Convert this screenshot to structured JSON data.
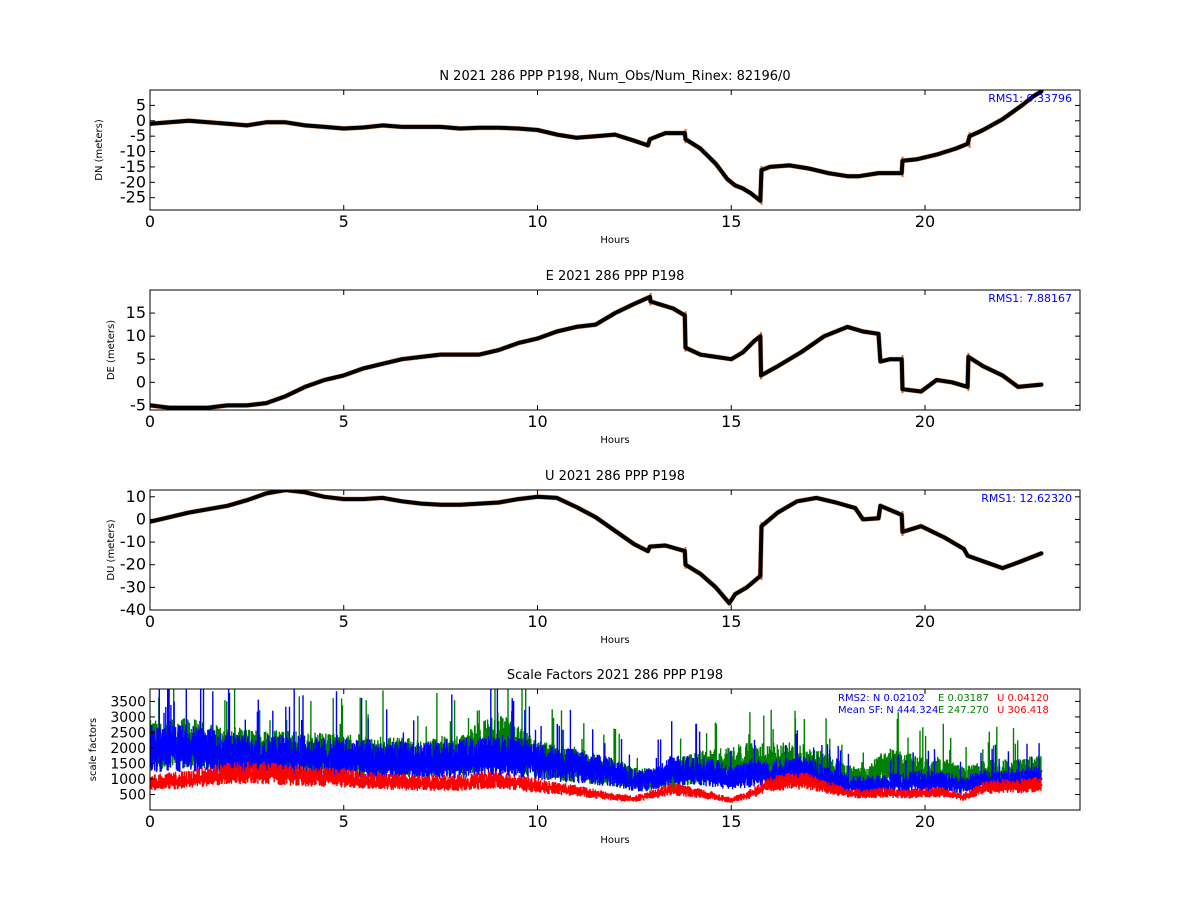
{
  "chart_data": [
    {
      "type": "scatter",
      "title": "N 2021 286 PPP  P198, Num_Obs/Num_Rinex: 82196/0",
      "xlabel": "Hours",
      "ylabel": "DN (meters)",
      "xlim": [
        0,
        24
      ],
      "ylim": [
        -29,
        10
      ],
      "xticks": [
        "0",
        "5",
        "10",
        "15",
        "20"
      ],
      "yticks": [
        "5",
        "0",
        "-5",
        "-10",
        "-15",
        "-20",
        "-25"
      ],
      "annotations": [
        "RMS1:  9.33796"
      ],
      "annotation_color": "#0000ff",
      "series": [
        {
          "color": "#000000",
          "marker_outline": "#d2691e",
          "x": [
            0,
            0.5,
            1,
            1.5,
            2,
            2.5,
            3,
            3.5,
            4,
            4.5,
            5,
            5.5,
            6,
            6.5,
            7,
            7.5,
            8,
            8.5,
            9,
            9.5,
            10,
            10.5,
            11,
            11.5,
            12,
            12.5,
            12.85,
            12.9,
            13.3,
            13.8,
            13.82,
            14.2,
            14.6,
            14.9,
            15.1,
            15.3,
            15.5,
            15.75,
            15.78,
            16,
            16.5,
            17,
            17.5,
            18,
            18.3,
            18.8,
            19.4,
            19.42,
            19.8,
            20.3,
            20.8,
            21.1,
            21.15,
            21.5,
            22,
            22.5,
            22.8,
            23
          ],
          "y": [
            -1,
            -0.5,
            0,
            -0.5,
            -1,
            -1.5,
            -0.5,
            -0.5,
            -1.5,
            -2,
            -2.5,
            -2.2,
            -1.5,
            -2,
            -2,
            -2,
            -2.5,
            -2.3,
            -2.3,
            -2.5,
            -3,
            -4.5,
            -5.5,
            -5,
            -4.5,
            -6.5,
            -8,
            -6,
            -4,
            -4,
            -6,
            -9,
            -14,
            -19,
            -21,
            -22,
            -23.5,
            -26,
            -16,
            -15,
            -14.5,
            -15.5,
            -17,
            -18,
            -18,
            -17,
            -17,
            -13,
            -12.5,
            -11,
            -9,
            -7.5,
            -5,
            -3,
            0.5,
            5,
            8,
            9.5
          ]
        }
      ]
    },
    {
      "type": "scatter",
      "title": "E 2021 286 PPP  P198",
      "xlabel": "Hours",
      "ylabel": "DE (meters)",
      "xlim": [
        0,
        24
      ],
      "ylim": [
        -6,
        20
      ],
      "xticks": [
        "0",
        "5",
        "10",
        "15",
        "20"
      ],
      "yticks": [
        "15",
        "10",
        "5",
        "0",
        "-5"
      ],
      "annotations": [
        "RMS1:  7.88167"
      ],
      "annotation_color": "#0000ff",
      "series": [
        {
          "color": "#000000",
          "marker_outline": "#d2691e",
          "x": [
            0,
            0.5,
            1,
            1.5,
            2,
            2.5,
            3,
            3.5,
            4,
            4.5,
            5,
            5.5,
            6,
            6.5,
            7,
            7.5,
            8,
            8.5,
            9,
            9.5,
            10,
            10.5,
            11,
            11.5,
            12,
            12.5,
            12.9,
            12.92,
            13.5,
            13.8,
            13.82,
            14.2,
            14.6,
            15,
            15.3,
            15.6,
            15.75,
            15.77,
            16.2,
            16.8,
            17.4,
            18,
            18.4,
            18.8,
            18.85,
            19.1,
            19.4,
            19.42,
            19.9,
            20.3,
            20.7,
            21.1,
            21.12,
            21.5,
            22,
            22.4,
            23
          ],
          "y": [
            -5,
            -5.5,
            -5.5,
            -5.5,
            -5,
            -5,
            -4.5,
            -3,
            -1,
            0.5,
            1.5,
            3,
            4,
            5,
            5.5,
            6,
            6,
            6,
            7,
            8.5,
            9.5,
            11,
            12,
            12.5,
            15,
            17,
            18.5,
            17.5,
            16,
            14.5,
            7.5,
            6,
            5.5,
            5,
            6.5,
            9,
            10,
            1.5,
            3.5,
            6.5,
            10,
            12,
            11,
            10.5,
            4.5,
            5,
            5,
            -1.5,
            -2,
            0.5,
            0,
            -1,
            5.5,
            3.5,
            1.5,
            -1,
            -0.5
          ]
        }
      ]
    },
    {
      "type": "scatter",
      "title": "U 2021 286 PPP  P198",
      "xlabel": "Hours",
      "ylabel": "DU (meters)",
      "xlim": [
        0,
        24
      ],
      "ylim": [
        -40,
        13
      ],
      "xticks": [
        "0",
        "5",
        "10",
        "15",
        "20"
      ],
      "yticks": [
        "10",
        "0",
        "-10",
        "-20",
        "-30",
        "-40"
      ],
      "annotations": [
        "RMS1: 12.62320"
      ],
      "annotation_color": "#0000ff",
      "series": [
        {
          "color": "#000000",
          "marker_outline": "#d2691e",
          "x": [
            0,
            0.5,
            1,
            1.5,
            2,
            2.5,
            3,
            3.5,
            4,
            4.5,
            5,
            5.5,
            6,
            6.5,
            7,
            7.5,
            8,
            8.5,
            9,
            9.5,
            10,
            10.5,
            11,
            11.5,
            12,
            12.5,
            12.85,
            12.9,
            13.3,
            13.8,
            13.82,
            14.2,
            14.6,
            14.95,
            15.1,
            15.4,
            15.75,
            15.78,
            16.2,
            16.7,
            17.2,
            17.7,
            18.2,
            18.4,
            18.8,
            18.85,
            19.4,
            19.42,
            19.9,
            20.5,
            21,
            21.1,
            21.5,
            22,
            22.4,
            23
          ],
          "y": [
            -1,
            1,
            3,
            4.5,
            6,
            8.5,
            11.5,
            13,
            12,
            10,
            9,
            9,
            9.5,
            8,
            7,
            6.5,
            6.5,
            7,
            7.5,
            9,
            10,
            9.5,
            5.5,
            1,
            -5,
            -11,
            -14,
            -12,
            -11.5,
            -14,
            -20,
            -24,
            -30,
            -37,
            -33,
            -30,
            -25,
            -3,
            3,
            8,
            9.5,
            7.5,
            5,
            0,
            0.5,
            6,
            2,
            -5.5,
            -3,
            -8,
            -13,
            -16,
            -18.5,
            -21.5,
            -19,
            -15
          ]
        }
      ]
    },
    {
      "type": "scatter",
      "title": "Scale Factors 2021 286 PPP  P198",
      "xlabel": "Hours",
      "ylabel": "scale factors",
      "xlim": [
        0,
        24
      ],
      "ylim": [
        0,
        3900
      ],
      "xticks": [
        "0",
        "5",
        "10",
        "15",
        "20"
      ],
      "yticks": [
        "3500",
        "3000",
        "2500",
        "2000",
        "1500",
        "1000",
        "500"
      ],
      "stats": [
        {
          "text": "RMS2: N  0.02102",
          "color": "#0000ff"
        },
        {
          "text": "E  0.03187",
          "color": "#008000"
        },
        {
          "text": "U  0.04120",
          "color": "#ff0000"
        },
        {
          "text": "Mean SF: N 444.324",
          "color": "#0000ff"
        },
        {
          "text": "E 247.270",
          "color": "#008000"
        },
        {
          "text": "U 306.418",
          "color": "#ff0000"
        }
      ],
      "series": [
        {
          "color": "#0000ff",
          "x": [
            0,
            1,
            2,
            3,
            4,
            5,
            6,
            7,
            8,
            9,
            10,
            11,
            12,
            12.5,
            13,
            13.5,
            14,
            14.5,
            15,
            15.5,
            16,
            16.5,
            17,
            17.5,
            18,
            18.5,
            19,
            19.5,
            20,
            20.5,
            21,
            21.5,
            22,
            22.5,
            23
          ],
          "y": [
            1900,
            1900,
            1750,
            1700,
            1650,
            1600,
            1550,
            1500,
            1600,
            1700,
            1500,
            1350,
            1150,
            900,
            950,
            1250,
            1200,
            1150,
            1000,
            1150,
            1100,
            1200,
            1200,
            950,
            800,
            750,
            850,
            850,
            900,
            850,
            750,
            900,
            900,
            950,
            1000
          ]
        },
        {
          "color": "#008000",
          "x": [
            0,
            1,
            2,
            3,
            4,
            5,
            6,
            7,
            8,
            9,
            10,
            11,
            12,
            12.5,
            13,
            13.5,
            14,
            14.5,
            15,
            15.5,
            16,
            16.5,
            17,
            17.5,
            18,
            18.5,
            19,
            19.5,
            20,
            20.5,
            21,
            21.5,
            22,
            22.5,
            23
          ],
          "y": [
            2000,
            2050,
            1850,
            1800,
            1750,
            1700,
            1650,
            1600,
            1700,
            2200,
            1550,
            1400,
            1150,
            950,
            950,
            1050,
            1300,
            1350,
            1450,
            1500,
            1500,
            1500,
            1450,
            1250,
            1000,
            950,
            1400,
            1300,
            1150,
            1200,
            950,
            1100,
            1150,
            1150,
            1250
          ]
        },
        {
          "color": "#ff0000",
          "x": [
            0,
            1,
            2,
            3,
            4,
            5,
            6,
            7,
            8,
            9,
            10,
            11,
            12,
            12.5,
            13,
            13.5,
            14,
            14.5,
            15,
            15.5,
            16,
            16.5,
            17,
            17.5,
            18,
            18.5,
            19,
            19.5,
            20,
            20.5,
            21,
            21.5,
            22,
            22.5,
            23
          ],
          "y": [
            850,
            950,
            1150,
            1150,
            1050,
            1000,
            900,
            850,
            850,
            950,
            750,
            600,
            400,
            350,
            500,
            650,
            550,
            450,
            300,
            500,
            800,
            900,
            900,
            700,
            550,
            500,
            550,
            500,
            550,
            550,
            400,
            700,
            750,
            750,
            800
          ]
        }
      ]
    }
  ]
}
